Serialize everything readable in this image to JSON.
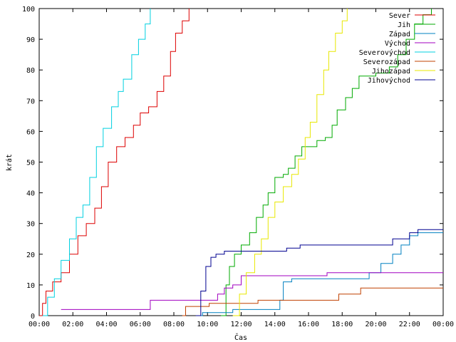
{
  "chart_data": {
    "type": "line",
    "title": "",
    "xlabel": "Čas",
    "ylabel": "krát",
    "xlim": [
      0,
      24
    ],
    "ylim": [
      0,
      100
    ],
    "x_tick_values": [
      0,
      2,
      4,
      6,
      8,
      10,
      12,
      14,
      16,
      18,
      20,
      22,
      24
    ],
    "x_tick_labels": [
      "00:00",
      "02:00",
      "04:00",
      "06:00",
      "08:00",
      "10:00",
      "12:00",
      "14:00",
      "16:00",
      "18:00",
      "20:00",
      "22:00",
      "00:00"
    ],
    "y_ticks": [
      0,
      10,
      20,
      30,
      40,
      50,
      60,
      70,
      80,
      90,
      100
    ],
    "grid": false,
    "legend_position": "top-right",
    "series": [
      {
        "name": "Sever",
        "color": "#dd0000",
        "points": [
          [
            0,
            0
          ],
          [
            0.2,
            4
          ],
          [
            0.4,
            8
          ],
          [
            0.8,
            11
          ],
          [
            1.3,
            14
          ],
          [
            1.8,
            20
          ],
          [
            2.3,
            26
          ],
          [
            2.8,
            30
          ],
          [
            3.3,
            35
          ],
          [
            3.7,
            42
          ],
          [
            4.1,
            50
          ],
          [
            4.6,
            55
          ],
          [
            5.1,
            58
          ],
          [
            5.6,
            62
          ],
          [
            6.0,
            66
          ],
          [
            6.5,
            68
          ],
          [
            7.0,
            73
          ],
          [
            7.4,
            78
          ],
          [
            7.8,
            86
          ],
          [
            8.1,
            92
          ],
          [
            8.5,
            96
          ],
          [
            8.9,
            100
          ]
        ]
      },
      {
        "name": "Jih",
        "color": "#00aa00",
        "points": [
          [
            10.8,
            0
          ],
          [
            11.1,
            10
          ],
          [
            11.3,
            16
          ],
          [
            11.6,
            20
          ],
          [
            12.0,
            23
          ],
          [
            12.5,
            27
          ],
          [
            12.9,
            32
          ],
          [
            13.3,
            36
          ],
          [
            13.6,
            40
          ],
          [
            14.0,
            45
          ],
          [
            14.5,
            46
          ],
          [
            14.8,
            48
          ],
          [
            15.2,
            52
          ],
          [
            15.6,
            55
          ],
          [
            16.5,
            57
          ],
          [
            17.0,
            58
          ],
          [
            17.4,
            62
          ],
          [
            17.7,
            67
          ],
          [
            18.2,
            71
          ],
          [
            18.6,
            74
          ],
          [
            19.0,
            78
          ],
          [
            20.0,
            79
          ],
          [
            20.8,
            81
          ],
          [
            21.3,
            85
          ],
          [
            21.8,
            90
          ],
          [
            22.3,
            95
          ],
          [
            22.8,
            98
          ],
          [
            23.3,
            100
          ]
        ]
      },
      {
        "name": "Západ",
        "color": "#0080c0",
        "points": [
          [
            9.5,
            0
          ],
          [
            9.7,
            1
          ],
          [
            11.5,
            2
          ],
          [
            14.3,
            5
          ],
          [
            14.5,
            11
          ],
          [
            15.0,
            12
          ],
          [
            19.5,
            12
          ],
          [
            19.6,
            14
          ],
          [
            20.3,
            17
          ],
          [
            21.0,
            20
          ],
          [
            21.5,
            23
          ],
          [
            22.0,
            26
          ],
          [
            22.5,
            27
          ],
          [
            24,
            27
          ]
        ]
      },
      {
        "name": "Východ",
        "color": "#a000c0",
        "points": [
          [
            1.3,
            2
          ],
          [
            6.5,
            2
          ],
          [
            6.6,
            5
          ],
          [
            10.5,
            5
          ],
          [
            10.6,
            7
          ],
          [
            11.0,
            9
          ],
          [
            11.5,
            10
          ],
          [
            12.0,
            13
          ],
          [
            17.0,
            13
          ],
          [
            17.1,
            14
          ],
          [
            24,
            14
          ]
        ]
      },
      {
        "name": "Severovýchod",
        "color": "#00d0e0",
        "points": [
          [
            0.2,
            0
          ],
          [
            0.5,
            6
          ],
          [
            0.9,
            12
          ],
          [
            1.3,
            18
          ],
          [
            1.8,
            25
          ],
          [
            2.2,
            32
          ],
          [
            2.6,
            36
          ],
          [
            3.0,
            45
          ],
          [
            3.4,
            55
          ],
          [
            3.8,
            61
          ],
          [
            4.3,
            68
          ],
          [
            4.7,
            73
          ],
          [
            5.0,
            77
          ],
          [
            5.5,
            85
          ],
          [
            5.9,
            90
          ],
          [
            6.3,
            95
          ],
          [
            6.6,
            100
          ]
        ]
      },
      {
        "name": "Severozápad",
        "color": "#c04000",
        "points": [
          [
            8.5,
            0
          ],
          [
            8.7,
            3
          ],
          [
            10.0,
            3
          ],
          [
            10.1,
            4
          ],
          [
            13.0,
            5
          ],
          [
            17.7,
            5
          ],
          [
            17.8,
            7
          ],
          [
            19.0,
            7
          ],
          [
            19.1,
            9
          ],
          [
            24,
            9
          ]
        ]
      },
      {
        "name": "Jihozápad",
        "color": "#e8e800",
        "points": [
          [
            11.5,
            0
          ],
          [
            11.9,
            7
          ],
          [
            12.3,
            14
          ],
          [
            12.8,
            20
          ],
          [
            13.2,
            25
          ],
          [
            13.6,
            32
          ],
          [
            14.0,
            37
          ],
          [
            14.5,
            42
          ],
          [
            15.0,
            46
          ],
          [
            15.4,
            51
          ],
          [
            15.8,
            58
          ],
          [
            16.1,
            63
          ],
          [
            16.5,
            72
          ],
          [
            16.9,
            80
          ],
          [
            17.2,
            86
          ],
          [
            17.6,
            92
          ],
          [
            18.0,
            96
          ],
          [
            18.3,
            100
          ]
        ]
      },
      {
        "name": "Jihovýchod",
        "color": "#000090",
        "points": [
          [
            9.3,
            0
          ],
          [
            9.6,
            8
          ],
          [
            9.9,
            16
          ],
          [
            10.2,
            19
          ],
          [
            10.5,
            20
          ],
          [
            11.0,
            21
          ],
          [
            12.4,
            21
          ],
          [
            14.0,
            21
          ],
          [
            14.7,
            22
          ],
          [
            15.5,
            23
          ],
          [
            19.5,
            23
          ],
          [
            21.0,
            25
          ],
          [
            22.0,
            27
          ],
          [
            22.5,
            28
          ],
          [
            24,
            28
          ]
        ]
      }
    ]
  }
}
